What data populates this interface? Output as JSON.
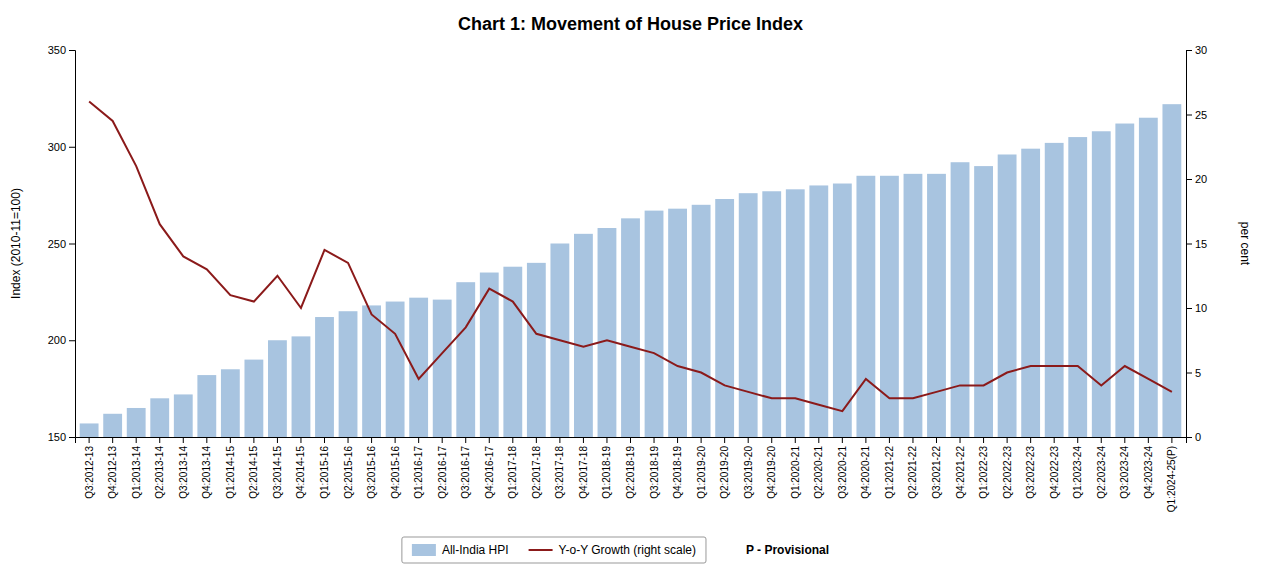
{
  "chart_data": {
    "type": "bar",
    "title": "Chart 1: Movement of House Price Index",
    "ylabel": "Index (2010-11=100)",
    "y2label": "per cent",
    "categories": [
      "Q3:2012-13",
      "Q4:2012-13",
      "Q1:2013-14",
      "Q2:2013-14",
      "Q3:2013-14",
      "Q4:2013-14",
      "Q1:2014-15",
      "Q2:2014-15",
      "Q3:2014-15",
      "Q4:2014-15",
      "Q1:2015-16",
      "Q2:2015-16",
      "Q3:2015-16",
      "Q4:2015-16",
      "Q1:2016-17",
      "Q2:2016-17",
      "Q3:2016-17",
      "Q4:2016-17",
      "Q1:2017-18",
      "Q2:2017-18",
      "Q3:2017-18",
      "Q4:2017-18",
      "Q1:2018-19",
      "Q2:2018-19",
      "Q3:2018-19",
      "Q4:2018-19",
      "Q1:2019-20",
      "Q2:2019-20",
      "Q3:2019-20",
      "Q4:2019-20",
      "Q1:2020-21",
      "Q2:2020-21",
      "Q3:2020-21",
      "Q4:2020-21",
      "Q1:2021-22",
      "Q2:2021-22",
      "Q3:2021-22",
      "Q4:2021-22",
      "Q1:2022-23",
      "Q2:2022-23",
      "Q3:2022-23",
      "Q4:2022-23",
      "Q1:2023-24",
      "Q2:2023-24",
      "Q3:2023-24",
      "Q4:2023-24",
      "Q1:2024-25(P)"
    ],
    "series": [
      {
        "name": "All-India HPI",
        "type": "bar",
        "color": "#A8C4E0",
        "values": [
          157,
          162,
          165,
          170,
          172,
          182,
          185,
          190,
          200,
          202,
          212,
          215,
          218,
          220,
          222,
          221,
          230,
          235,
          238,
          240,
          250,
          255,
          258,
          263,
          267,
          268,
          270,
          273,
          276,
          277,
          278,
          280,
          281,
          285,
          285,
          286,
          286,
          292,
          290,
          296,
          299,
          302,
          305,
          308,
          312,
          315,
          322
        ]
      },
      {
        "name": "Y-o-Y Growth (right scale)",
        "type": "line",
        "axis": "y2",
        "color": "#8B1A1A",
        "values": [
          26.0,
          24.5,
          21.0,
          16.5,
          14.0,
          13.0,
          11.0,
          10.5,
          12.5,
          10.0,
          14.5,
          13.5,
          9.5,
          8.0,
          4.5,
          6.5,
          8.5,
          11.5,
          10.5,
          8.0,
          7.5,
          7.0,
          7.5,
          7.0,
          6.5,
          5.5,
          5.0,
          4.0,
          3.5,
          3.0,
          3.0,
          2.5,
          2.0,
          4.5,
          3.0,
          3.0,
          3.5,
          4.0,
          4.0,
          5.0,
          5.5,
          5.5,
          5.5,
          4.0,
          5.5,
          4.5,
          3.5
        ]
      }
    ],
    "ylim": [
      150,
      350
    ],
    "yticks": [
      150,
      200,
      250,
      300,
      350
    ],
    "y2lim": [
      0,
      30
    ],
    "y2ticks": [
      0,
      5,
      10,
      15,
      20,
      25,
      30
    ],
    "grid": false,
    "legend": "bottom",
    "annotations": [
      "P - Provisional"
    ]
  }
}
